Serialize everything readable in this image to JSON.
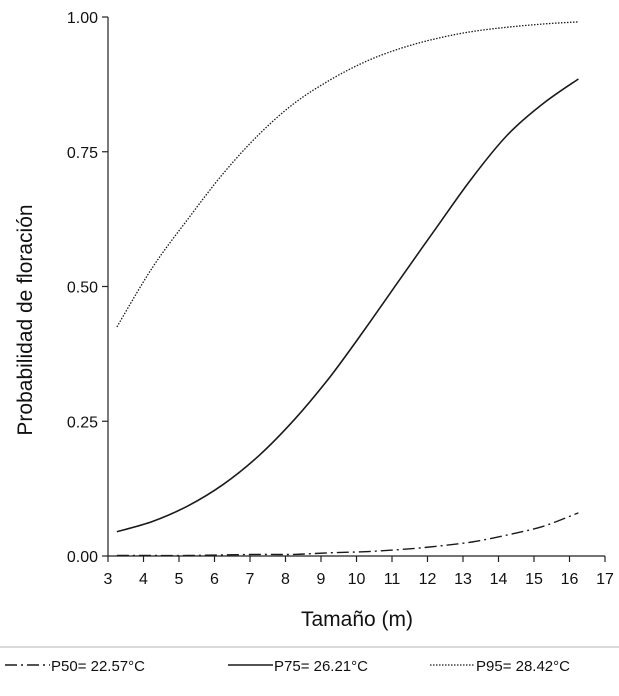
{
  "chart_data": {
    "type": "line",
    "title": "",
    "xlabel": "Tamaño (m)",
    "ylabel": "Probabilidad de floración",
    "xlim": [
      3,
      17
    ],
    "ylim": [
      0,
      1
    ],
    "x_ticks": [
      3,
      4,
      5,
      6,
      7,
      8,
      9,
      10,
      11,
      12,
      13,
      14,
      15,
      16,
      17
    ],
    "y_ticks": [
      0,
      0.25,
      0.5,
      0.75,
      1
    ],
    "y_tick_labels": [
      "0.00",
      "0.25",
      "0.50",
      "0.75",
      "1.00"
    ],
    "grid": false,
    "legend_position": "bottom",
    "x": [
      3.25,
      4.25,
      5.25,
      6.25,
      7.25,
      8.25,
      9.25,
      10.25,
      11.25,
      12.25,
      13.25,
      14.25,
      15.25,
      16.25
    ],
    "series": [
      {
        "name": "P50= 22.57°C",
        "line_style": "dash-dot",
        "values": [
          0.001,
          0.001,
          0.001,
          0.002,
          0.003,
          0.003,
          0.006,
          0.008,
          0.012,
          0.018,
          0.026,
          0.039,
          0.055,
          0.08
        ]
      },
      {
        "name": "P75= 26.21°C",
        "line_style": "solid",
        "values": [
          0.045,
          0.064,
          0.093,
          0.133,
          0.186,
          0.253,
          0.332,
          0.422,
          0.516,
          0.609,
          0.701,
          0.781,
          0.839,
          0.885
        ]
      },
      {
        "name": "P95= 28.42°C",
        "line_style": "dotted",
        "values": [
          0.425,
          0.535,
          0.625,
          0.71,
          0.782,
          0.84,
          0.883,
          0.917,
          0.942,
          0.96,
          0.973,
          0.981,
          0.987,
          0.991
        ]
      }
    ]
  }
}
